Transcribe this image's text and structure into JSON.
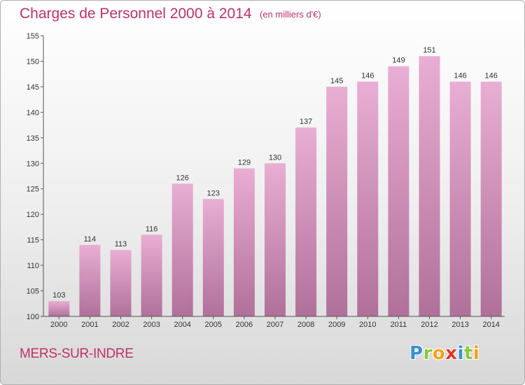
{
  "header": {
    "title": "Charges de Personnel 2000 à 2014",
    "subtitle": "(en milliers d'€)"
  },
  "footer": {
    "city": "MERS-SUR-INDRE",
    "logo_letters": [
      {
        "ch": "P",
        "color": "#3a8fd0"
      },
      {
        "ch": "r",
        "color": "#8cc63f"
      },
      {
        "ch": "o",
        "color": "#f7a21b"
      },
      {
        "ch": "x",
        "color": "#e5342a"
      },
      {
        "ch": "i",
        "color": "#3a8fd0"
      },
      {
        "ch": "t",
        "color": "#8cc63f"
      },
      {
        "ch": "i",
        "color": "#f7a21b"
      }
    ]
  },
  "colors": {
    "accent": "#c0306a",
    "bar_top": "#e9aed3",
    "bar_bottom": "#b0709a"
  },
  "chart_data": {
    "type": "bar",
    "title": "Charges de Personnel 2000 à 2014",
    "subtitle": "(en milliers d'€)",
    "xlabel": "",
    "ylabel": "",
    "categories": [
      "2000",
      "2001",
      "2002",
      "2003",
      "2004",
      "2005",
      "2006",
      "2007",
      "2008",
      "2009",
      "2010",
      "2011",
      "2012",
      "2013",
      "2014"
    ],
    "values": [
      103,
      114,
      113,
      116,
      126,
      123,
      129,
      130,
      137,
      145,
      146,
      149,
      151,
      146,
      146
    ],
    "ylim": [
      100,
      155
    ],
    "yticks": [
      100,
      105,
      110,
      115,
      120,
      125,
      130,
      135,
      140,
      145,
      150,
      155
    ],
    "grid": false,
    "value_labels": true
  }
}
